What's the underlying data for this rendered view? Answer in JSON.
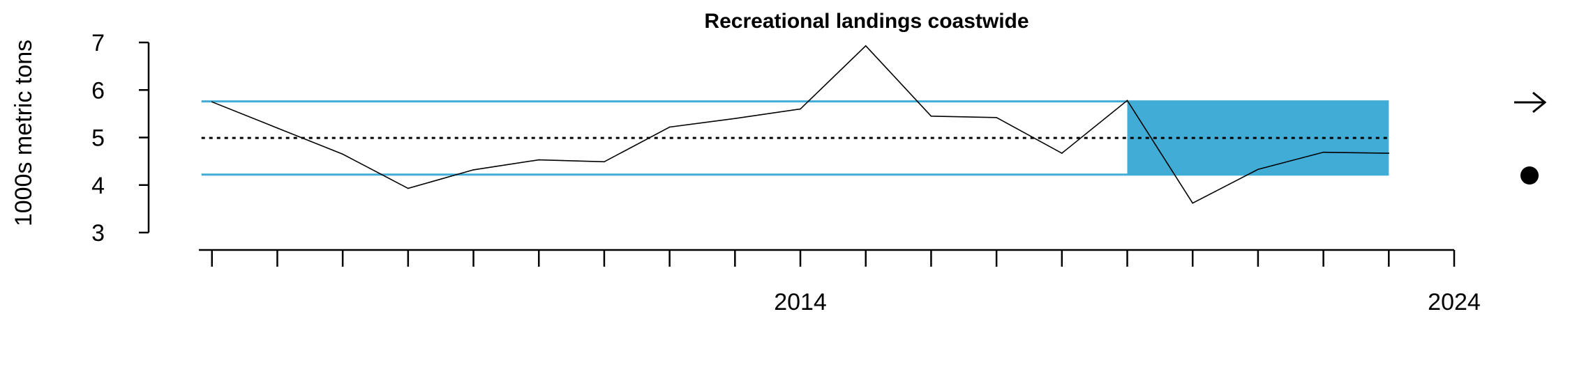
{
  "chart_data": {
    "type": "line",
    "title": "Recreational landings coastwide",
    "xlabel": "",
    "ylabel": "1000s metric tons",
    "x": [
      2005,
      2006,
      2007,
      2008,
      2009,
      2010,
      2011,
      2012,
      2013,
      2014,
      2015,
      2016,
      2017,
      2018,
      2019,
      2020,
      2021,
      2022,
      2023
    ],
    "series": [
      {
        "values": [
          5.75,
          5.2,
          4.65,
          3.93,
          4.32,
          4.53,
          4.49,
          5.22,
          5.4,
          5.6,
          6.93,
          5.45,
          5.42,
          4.67,
          5.78,
          3.62,
          4.33,
          4.69,
          4.67
        ]
      }
    ],
    "xlim": [
      2004.8,
      2024
    ],
    "ylim": [
      3,
      7
    ],
    "yticks": [
      3,
      4,
      5,
      6,
      7
    ],
    "xticks_major": [
      2014,
      2024
    ],
    "xticks_minor": [
      2005,
      2006,
      2007,
      2008,
      2009,
      2010,
      2011,
      2012,
      2013,
      2015,
      2016,
      2017,
      2018,
      2019,
      2020,
      2021,
      2022,
      2023
    ],
    "mean_line": 4.99,
    "sd_band": [
      4.22,
      5.76
    ],
    "highlight_range": [
      2019,
      2023
    ],
    "grid": false,
    "colors": {
      "band": "#41acd6",
      "line": "#000000",
      "mean": "#000000"
    },
    "indicators": {
      "trend": "arrow-right-icon",
      "status": "filled-circle-icon"
    }
  }
}
